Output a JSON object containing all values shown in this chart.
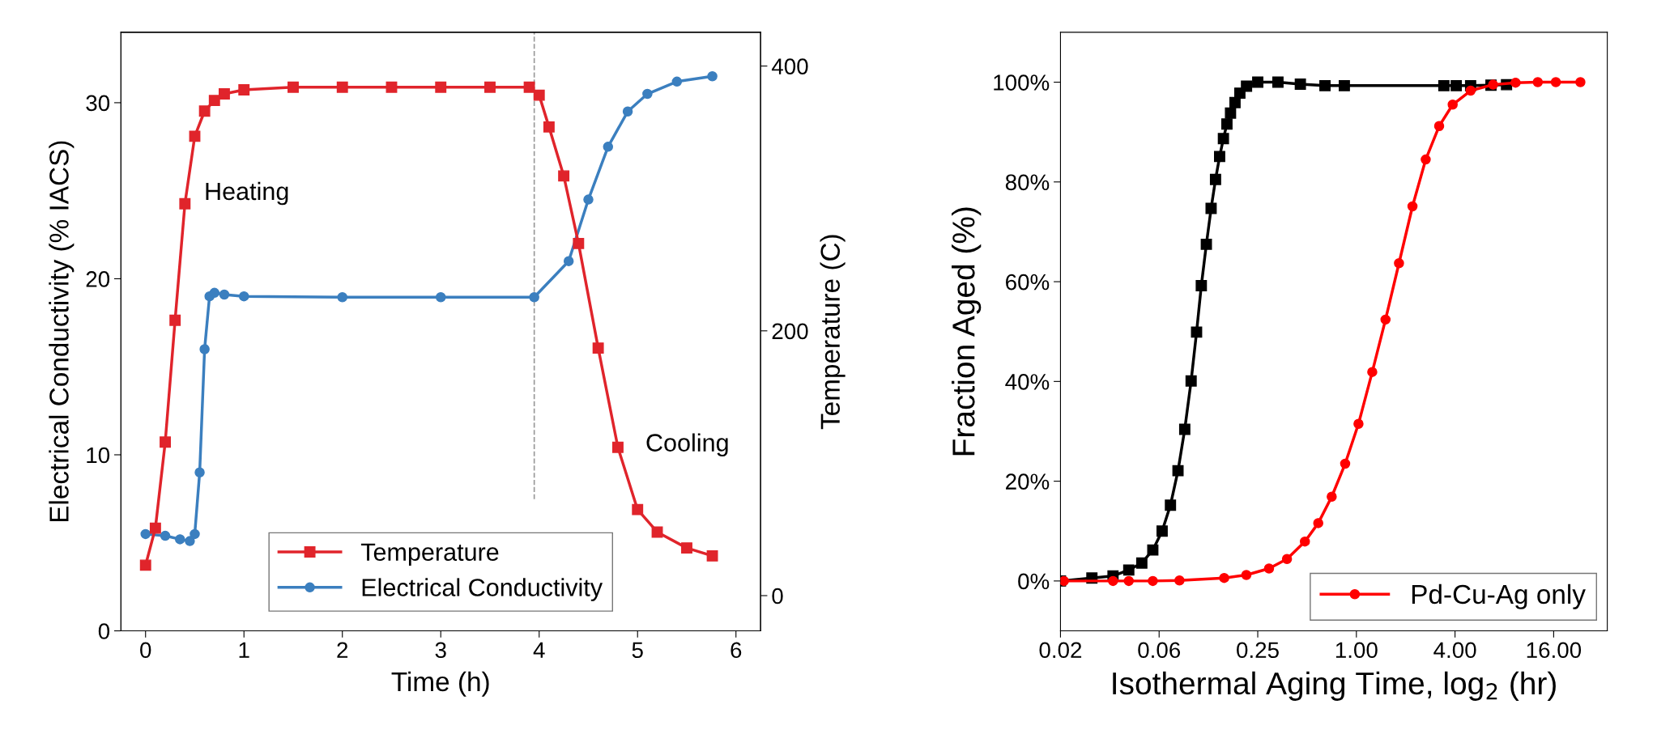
{
  "chart_data": [
    {
      "type": "line",
      "xlabel": "Time (h)",
      "ylabel": "Electrical Conductivity (% IACS)",
      "y2label": "Temperature (C)",
      "xlim": [
        -0.25,
        6.25
      ],
      "xticks": [
        0,
        1,
        2,
        3,
        4,
        5,
        6
      ],
      "ylim": [
        0,
        34
      ],
      "yticks": [
        0,
        10,
        20,
        30
      ],
      "y2lim": [
        -26.6,
        425.5
      ],
      "y2ticks": [
        0,
        200,
        400
      ],
      "grid": false,
      "legend": "bottom",
      "line_style": "solid",
      "series": [
        {
          "name": "Temperature",
          "color": "#e0242b",
          "axis": "y2",
          "marker": "square",
          "x": [
            0,
            0.1,
            0.2,
            0.3,
            0.4,
            0.5,
            0.6,
            0.7,
            0.8,
            1.0,
            1.5,
            2.0,
            2.5,
            3.0,
            3.5,
            3.9,
            4.0,
            4.1,
            4.25,
            4.4,
            4.6,
            4.8,
            5.0,
            5.2,
            5.5,
            5.76
          ],
          "values": [
            23,
            51,
            116,
            208,
            296,
            347,
            366,
            374,
            379,
            382,
            384,
            384,
            384,
            384,
            384,
            384,
            378,
            354,
            317,
            266,
            187,
            112,
            65,
            48,
            36,
            30
          ]
        },
        {
          "name": "Electrical Conductivity",
          "color": "#3b7fbf",
          "marker": "circle",
          "x": [
            0,
            0.2,
            0.35,
            0.45,
            0.5,
            0.55,
            0.6,
            0.65,
            0.7,
            0.8,
            1.0,
            2.0,
            3.0,
            3.95,
            4.3,
            4.5,
            4.7,
            4.9,
            5.1,
            5.4,
            5.76
          ],
          "values": [
            5.5,
            5.4,
            5.2,
            5.1,
            5.5,
            9,
            16,
            19,
            19.2,
            19.1,
            19.0,
            18.95,
            18.95,
            18.95,
            21,
            24.5,
            27.5,
            29.5,
            30.5,
            31.2,
            31.5
          ]
        }
      ],
      "ref_lines": [
        {
          "axis": "x",
          "value": 3.95,
          "color": "#999999",
          "line_style": "dashed"
        }
      ],
      "annotations": [
        "Heating",
        "Cooling"
      ]
    },
    {
      "type": "line",
      "xlabel": "Isothermal Aging Time, log$_{2}$ (hr)",
      "ylabel": "Fraction Aged (%)",
      "log": "x",
      "xlim": [
        0.015625,
        34
      ],
      "xticks": [
        {
          "value": 0.015625,
          "label": "0.02"
        },
        {
          "value": 0.0625,
          "label": "0.06"
        },
        {
          "value": 0.25,
          "label": "0.25"
        },
        {
          "value": 1,
          "label": "1.00"
        },
        {
          "value": 4,
          "label": "4.00"
        },
        {
          "value": 16,
          "label": "16.00"
        }
      ],
      "ylim": [
        -10,
        110
      ],
      "yticks": [
        {
          "value": 0,
          "label": "0%"
        },
        {
          "value": 20,
          "label": "20%"
        },
        {
          "value": 40,
          "label": "40%"
        },
        {
          "value": 60,
          "label": "60%"
        },
        {
          "value": 80,
          "label": "80%"
        },
        {
          "value": 100,
          "label": "100%"
        }
      ],
      "grid": false,
      "legend": "bottom right",
      "line_style": "solid",
      "series": [
        {
          "color": "#000000",
          "marker": "square",
          "x": [
            0.015625,
            0.0243,
            0.0327,
            0.0408,
            0.049,
            0.0572,
            0.0652,
            0.0733,
            0.0815,
            0.0896,
            0.098,
            0.1058,
            0.1131,
            0.1214,
            0.1298,
            0.1381,
            0.1463,
            0.1543,
            0.1621,
            0.1705,
            0.1816,
            0.1944,
            0.2135,
            0.25,
            0.332,
            0.455,
            0.643,
            0.844,
            3.42,
            4.07,
            4.98,
            6.63,
            8.25
          ],
          "values": [
            0,
            0.6,
            1.0,
            2.2,
            3.6,
            6.2,
            10.0,
            15.2,
            22.1,
            30.4,
            40.1,
            49.9,
            59.2,
            67.5,
            74.7,
            80.5,
            85.1,
            88.7,
            91.6,
            93.8,
            95.9,
            97.8,
            99.2,
            100,
            100,
            99.6,
            99.3,
            99.3,
            99.3,
            99.3,
            99.3,
            99.4,
            99.5
          ]
        },
        {
          "name": "Pd-Cu-Ag only",
          "color": "#ff0000",
          "marker": "circle",
          "x": [
            0.0164,
            0.0327,
            0.0408,
            0.0572,
            0.0832,
            0.156,
            0.213,
            0.293,
            0.377,
            0.485,
            0.585,
            0.707,
            0.854,
            1.03,
            1.25,
            1.506,
            1.82,
            2.2,
            2.65,
            3.2,
            3.87,
            4.98,
            6.83,
            9.37,
            12.8,
            16.5,
            23.3
          ],
          "values": [
            0,
            0,
            0,
            0,
            0.1,
            0.6,
            1.2,
            2.5,
            4.4,
            7.9,
            11.6,
            16.9,
            23.5,
            31.5,
            41.9,
            52.4,
            63.7,
            75.1,
            84.5,
            91.2,
            95.5,
            98.3,
            99.5,
            99.9,
            100,
            100,
            100
          ]
        }
      ]
    }
  ]
}
